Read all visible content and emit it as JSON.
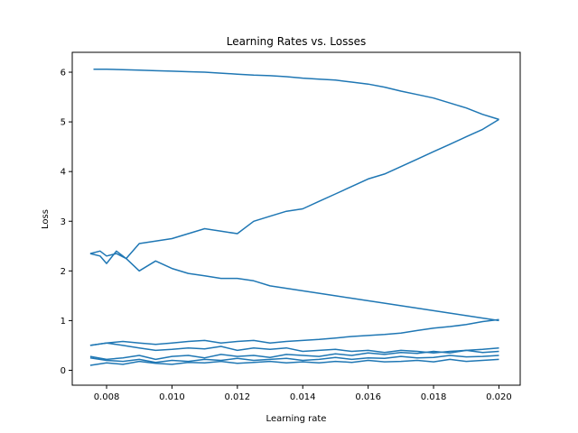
{
  "chart_data": {
    "type": "line",
    "title": "Learning Rates vs. Losses",
    "xlabel": "Learning rate",
    "ylabel": "Loss",
    "xlim": [
      0.00695,
      0.02065
    ],
    "ylim": [
      -0.3,
      6.4
    ],
    "x_ticks": [
      0.008,
      0.01,
      0.012,
      0.014,
      0.016,
      0.018,
      0.02
    ],
    "x_tick_labels": [
      "0.008",
      "0.010",
      "0.012",
      "0.014",
      "0.016",
      "0.018",
      "0.020"
    ],
    "y_ticks": [
      0,
      1,
      2,
      3,
      4,
      5,
      6
    ],
    "y_tick_labels": [
      "0",
      "1",
      "2",
      "3",
      "4",
      "5",
      "6"
    ],
    "grid": false,
    "legend": "none",
    "line_color": "#1f77b4",
    "series": [
      {
        "x": [
          0.0076,
          0.008,
          0.0085,
          0.009,
          0.0095,
          0.01,
          0.0105,
          0.011,
          0.0115,
          0.012,
          0.0125,
          0.013,
          0.0135,
          0.014,
          0.0145,
          0.015,
          0.0155,
          0.016,
          0.0165,
          0.017,
          0.0175,
          0.018,
          0.0185,
          0.019,
          0.0195,
          0.02
        ],
        "y": [
          6.06,
          6.06,
          6.05,
          6.04,
          6.03,
          6.02,
          6.01,
          6.0,
          5.98,
          5.96,
          5.94,
          5.93,
          5.91,
          5.88,
          5.86,
          5.84,
          5.8,
          5.76,
          5.7,
          5.62,
          5.55,
          5.48,
          5.38,
          5.28,
          5.15,
          5.05
        ]
      },
      {
        "x": [
          0.0075,
          0.0078,
          0.008,
          0.0083,
          0.0086,
          0.009,
          0.0095,
          0.01,
          0.0105,
          0.011,
          0.0115,
          0.012,
          0.0125,
          0.013,
          0.0135,
          0.014,
          0.0145,
          0.015,
          0.0155,
          0.016,
          0.0165,
          0.017,
          0.0175,
          0.018,
          0.0185,
          0.019,
          0.0195,
          0.02
        ],
        "y": [
          2.35,
          2.3,
          2.15,
          2.4,
          2.25,
          2.55,
          2.6,
          2.65,
          2.75,
          2.85,
          2.8,
          2.75,
          3.0,
          3.1,
          3.2,
          3.25,
          3.4,
          3.55,
          3.7,
          3.85,
          3.95,
          4.1,
          4.25,
          4.4,
          4.55,
          4.7,
          4.85,
          5.05
        ]
      },
      {
        "x": [
          0.0075,
          0.0078,
          0.008,
          0.0083,
          0.0086,
          0.009,
          0.0095,
          0.01,
          0.0105,
          0.011,
          0.0115,
          0.012,
          0.0125,
          0.013,
          0.0135,
          0.014,
          0.0145,
          0.015,
          0.0155,
          0.016,
          0.0165,
          0.017,
          0.0175,
          0.018,
          0.0185,
          0.019,
          0.0195,
          0.02
        ],
        "y": [
          2.35,
          2.4,
          2.3,
          2.35,
          2.25,
          2.0,
          2.2,
          2.05,
          1.95,
          1.9,
          1.85,
          1.85,
          1.8,
          1.7,
          1.65,
          1.6,
          1.55,
          1.5,
          1.45,
          1.4,
          1.35,
          1.3,
          1.25,
          1.2,
          1.15,
          1.1,
          1.05,
          1.0
        ]
      },
      {
        "x": [
          0.0075,
          0.008,
          0.0085,
          0.009,
          0.0095,
          0.01,
          0.0105,
          0.011,
          0.0115,
          0.012,
          0.0125,
          0.013,
          0.0135,
          0.014,
          0.0145,
          0.015,
          0.0155,
          0.016,
          0.0165,
          0.017,
          0.0175,
          0.018,
          0.0185,
          0.019,
          0.0195,
          0.02
        ],
        "y": [
          0.5,
          0.55,
          0.58,
          0.55,
          0.52,
          0.55,
          0.58,
          0.6,
          0.55,
          0.58,
          0.6,
          0.55,
          0.58,
          0.6,
          0.62,
          0.65,
          0.68,
          0.7,
          0.72,
          0.75,
          0.8,
          0.85,
          0.88,
          0.92,
          0.98,
          1.02
        ]
      },
      {
        "x": [
          0.0075,
          0.008,
          0.0085,
          0.009,
          0.0095,
          0.01,
          0.0105,
          0.011,
          0.0115,
          0.012,
          0.0125,
          0.013,
          0.0135,
          0.014,
          0.0145,
          0.015,
          0.0155,
          0.016,
          0.0165,
          0.017,
          0.0175,
          0.018,
          0.0185,
          0.019,
          0.0195,
          0.02
        ],
        "y": [
          0.5,
          0.55,
          0.5,
          0.45,
          0.4,
          0.42,
          0.45,
          0.43,
          0.48,
          0.4,
          0.45,
          0.42,
          0.45,
          0.38,
          0.4,
          0.42,
          0.38,
          0.4,
          0.36,
          0.4,
          0.38,
          0.35,
          0.38,
          0.4,
          0.36,
          0.38
        ]
      },
      {
        "x": [
          0.0075,
          0.008,
          0.0085,
          0.009,
          0.0095,
          0.01,
          0.0105,
          0.011,
          0.0115,
          0.012,
          0.0125,
          0.013,
          0.0135,
          0.014,
          0.0145,
          0.015,
          0.0155,
          0.016,
          0.0165,
          0.017,
          0.0175,
          0.018,
          0.0185,
          0.019,
          0.0195,
          0.02
        ],
        "y": [
          0.28,
          0.22,
          0.25,
          0.3,
          0.22,
          0.28,
          0.3,
          0.25,
          0.32,
          0.28,
          0.3,
          0.26,
          0.32,
          0.3,
          0.28,
          0.33,
          0.3,
          0.35,
          0.32,
          0.36,
          0.34,
          0.38,
          0.35,
          0.4,
          0.42,
          0.45
        ]
      },
      {
        "x": [
          0.0075,
          0.008,
          0.0085,
          0.009,
          0.0095,
          0.01,
          0.0105,
          0.011,
          0.0115,
          0.012,
          0.0125,
          0.013,
          0.0135,
          0.014,
          0.0145,
          0.015,
          0.0155,
          0.016,
          0.0165,
          0.017,
          0.0175,
          0.018,
          0.0185,
          0.019,
          0.0195,
          0.02
        ],
        "y": [
          0.25,
          0.2,
          0.18,
          0.22,
          0.16,
          0.2,
          0.18,
          0.22,
          0.2,
          0.24,
          0.2,
          0.22,
          0.24,
          0.2,
          0.22,
          0.26,
          0.22,
          0.25,
          0.24,
          0.28,
          0.25,
          0.26,
          0.3,
          0.27,
          0.28,
          0.3
        ]
      },
      {
        "x": [
          0.0075,
          0.008,
          0.0085,
          0.009,
          0.0095,
          0.01,
          0.0105,
          0.011,
          0.0115,
          0.012,
          0.0125,
          0.013,
          0.0135,
          0.014,
          0.0145,
          0.015,
          0.0155,
          0.016,
          0.0165,
          0.017,
          0.0175,
          0.018,
          0.0185,
          0.019,
          0.0195,
          0.02
        ],
        "y": [
          0.1,
          0.15,
          0.12,
          0.18,
          0.14,
          0.12,
          0.16,
          0.15,
          0.18,
          0.14,
          0.16,
          0.18,
          0.15,
          0.17,
          0.15,
          0.18,
          0.16,
          0.2,
          0.17,
          0.18,
          0.2,
          0.17,
          0.22,
          0.18,
          0.2,
          0.22
        ]
      }
    ]
  }
}
